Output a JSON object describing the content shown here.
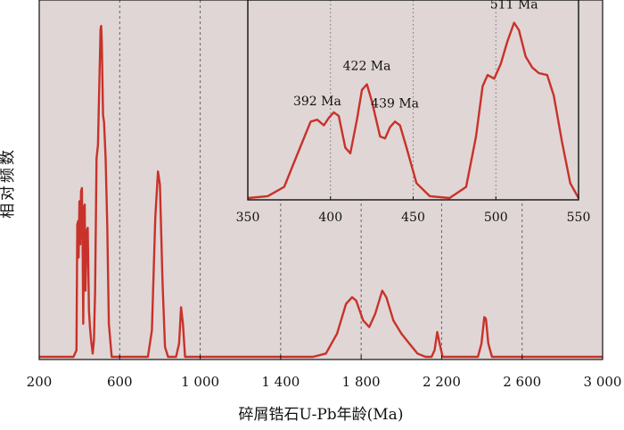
{
  "chart_data": [
    {
      "type": "line",
      "title": "",
      "xlabel": "碎屑锆石U-Pb年龄(Ma)",
      "ylabel": "相对频数",
      "xlim": [
        200,
        3000
      ],
      "ylim": [
        0,
        1
      ],
      "x_tick_labels": [
        "200",
        "600",
        "1 000",
        "1 400",
        "1 800",
        "2 200",
        "2 600",
        "3 000"
      ],
      "x_ticks": [
        200,
        600,
        1000,
        1400,
        1800,
        2200,
        2600,
        3000
      ],
      "y_ticks_shown": false,
      "grid": "vertical dashed lines at 600, 1000, 1400, 1800, 2200, 2600",
      "background": "#e0d6d6",
      "line_color": "#c8322a",
      "series": [
        {
          "points": [
            [
              200,
              0.0
            ],
            [
              370,
              0.0
            ],
            [
              385,
              0.02
            ],
            [
              389,
              0.4
            ],
            [
              393,
              0.41
            ],
            [
              396,
              0.3
            ],
            [
              400,
              0.47
            ],
            [
              404,
              0.34
            ],
            [
              408,
              0.5
            ],
            [
              412,
              0.51
            ],
            [
              416,
              0.3
            ],
            [
              419,
              0.1
            ],
            [
              422,
              0.45
            ],
            [
              426,
              0.46
            ],
            [
              430,
              0.2
            ],
            [
              436,
              0.38
            ],
            [
              441,
              0.39
            ],
            [
              447,
              0.14
            ],
            [
              452,
              0.09
            ],
            [
              458,
              0.05
            ],
            [
              466,
              0.01
            ],
            [
              472,
              0.05
            ],
            [
              478,
              0.2
            ],
            [
              485,
              0.6
            ],
            [
              492,
              0.64
            ],
            [
              500,
              0.86
            ],
            [
              505,
              0.99
            ],
            [
              508,
              1.0
            ],
            [
              511,
              0.95
            ],
            [
              517,
              0.73
            ],
            [
              522,
              0.71
            ],
            [
              530,
              0.6
            ],
            [
              538,
              0.4
            ],
            [
              546,
              0.1
            ],
            [
              560,
              0.0
            ],
            [
              740,
              0.0
            ],
            [
              760,
              0.08
            ],
            [
              777,
              0.42
            ],
            [
              790,
              0.56
            ],
            [
              800,
              0.52
            ],
            [
              813,
              0.22
            ],
            [
              825,
              0.03
            ],
            [
              840,
              0.0
            ],
            [
              880,
              0.0
            ],
            [
              895,
              0.04
            ],
            [
              905,
              0.15
            ],
            [
              914,
              0.1
            ],
            [
              925,
              0.0
            ],
            [
              1560,
              0.0
            ],
            [
              1625,
              0.01
            ],
            [
              1680,
              0.07
            ],
            [
              1725,
              0.16
            ],
            [
              1755,
              0.18
            ],
            [
              1775,
              0.17
            ],
            [
              1810,
              0.11
            ],
            [
              1840,
              0.09
            ],
            [
              1870,
              0.13
            ],
            [
              1905,
              0.2
            ],
            [
              1925,
              0.18
            ],
            [
              1960,
              0.11
            ],
            [
              2000,
              0.07
            ],
            [
              2040,
              0.04
            ],
            [
              2080,
              0.01
            ],
            [
              2120,
              0.0
            ],
            [
              2150,
              0.0
            ],
            [
              2165,
              0.02
            ],
            [
              2178,
              0.075
            ],
            [
              2190,
              0.04
            ],
            [
              2205,
              0.0
            ],
            [
              2380,
              0.0
            ],
            [
              2398,
              0.04
            ],
            [
              2412,
              0.12
            ],
            [
              2420,
              0.115
            ],
            [
              2432,
              0.04
            ],
            [
              2450,
              0.0
            ],
            [
              3000,
              0.0
            ]
          ]
        }
      ]
    },
    {
      "type": "line",
      "title": "",
      "xlabel": "",
      "ylabel": "",
      "xlim": [
        350,
        550
      ],
      "x_ticks": [
        350,
        400,
        450,
        500,
        550
      ],
      "x_tick_labels": [
        "350",
        "400",
        "450",
        "500",
        "550"
      ],
      "grid": "vertical dotted lines at 400, 450, 500",
      "background": "#e0d6d6",
      "line_color": "#c8322a",
      "annotations": [
        {
          "text": "392 Ma",
          "x": 392
        },
        {
          "text": "422 Ma",
          "x": 422
        },
        {
          "text": "439 Ma",
          "x": 439
        },
        {
          "text": "511 Ma",
          "x": 511
        }
      ],
      "series": [
        {
          "points": [
            [
              350,
              0.0
            ],
            [
              362,
              0.01
            ],
            [
              372,
              0.06
            ],
            [
              382,
              0.28
            ],
            [
              388,
              0.41
            ],
            [
              392,
              0.42
            ],
            [
              396,
              0.39
            ],
            [
              399,
              0.43
            ],
            [
              402,
              0.46
            ],
            [
              405,
              0.44
            ],
            [
              409,
              0.27
            ],
            [
              412,
              0.24
            ],
            [
              416,
              0.42
            ],
            [
              419,
              0.58
            ],
            [
              422,
              0.61
            ],
            [
              425,
              0.52
            ],
            [
              430,
              0.33
            ],
            [
              433,
              0.32
            ],
            [
              436,
              0.38
            ],
            [
              439,
              0.41
            ],
            [
              442,
              0.39
            ],
            [
              446,
              0.27
            ],
            [
              452,
              0.08
            ],
            [
              460,
              0.01
            ],
            [
              472,
              0.0
            ],
            [
              482,
              0.06
            ],
            [
              488,
              0.33
            ],
            [
              492,
              0.6
            ],
            [
              495,
              0.66
            ],
            [
              499,
              0.64
            ],
            [
              503,
              0.72
            ],
            [
              507,
              0.84
            ],
            [
              511,
              0.94
            ],
            [
              514,
              0.9
            ],
            [
              518,
              0.76
            ],
            [
              522,
              0.7
            ],
            [
              526,
              0.67
            ],
            [
              531,
              0.66
            ],
            [
              535,
              0.55
            ],
            [
              540,
              0.3
            ],
            [
              545,
              0.08
            ],
            [
              550,
              0.0
            ]
          ]
        }
      ]
    }
  ]
}
